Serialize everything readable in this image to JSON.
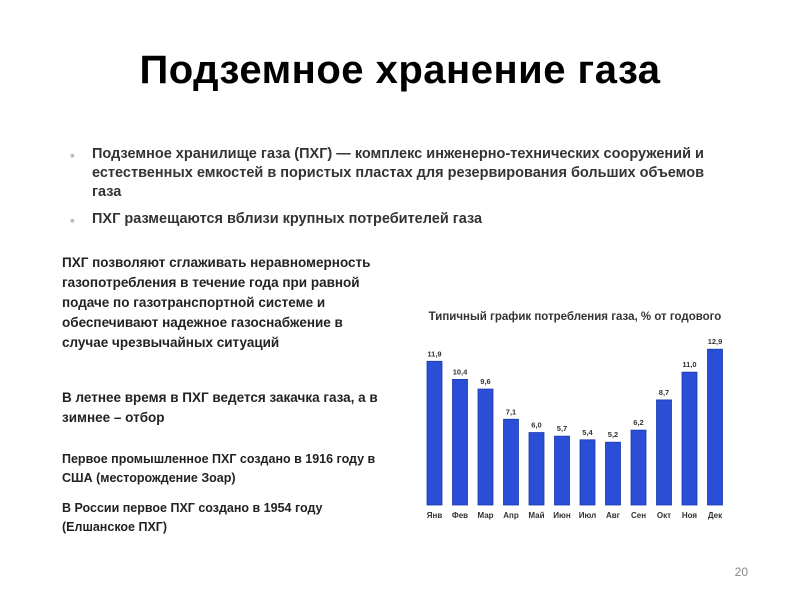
{
  "slide": {
    "title": "Подземное хранение газа",
    "page_number": "20",
    "bullets": [
      "Подземное хранилище газа (ПХГ) — комплекс инженерно-технических сооружений и естественных емкостей в пористых пластах для резервирования больших объемов газа",
      "ПХГ размещаются вблизи крупных потребителей газа"
    ],
    "paragraphs": [
      "ПХГ позволяют сглаживать неравномерность газопотребления в течение года при равной подаче по газотранспортной системе и обеспечивают надежное газоснабжение в случае чрезвычайных ситуаций",
      "В летнее время в ПХГ ведется закачка газа, а в зимнее – отбор",
      "Первое промышленное ПХГ создано в 1916 году в США (месторождение Зоар)",
      "В России первое ПХГ создано в 1954 году (Елшанское ПХГ)"
    ]
  },
  "colors": {
    "bar": "#2a4fd6",
    "bar_edge": "#1a3ab0"
  },
  "chart_data": {
    "type": "bar",
    "title": "Типичный график потребления газа, % от годового",
    "categories": [
      "Янв",
      "Фев",
      "Мар",
      "Апр",
      "Май",
      "Июн",
      "Июл",
      "Авг",
      "Сен",
      "Окт",
      "Ноя",
      "Дек"
    ],
    "values": [
      11.9,
      10.4,
      9.6,
      7.1,
      6.0,
      5.7,
      5.4,
      5.2,
      6.2,
      8.7,
      11.0,
      12.9
    ],
    "value_labels": [
      "11,9",
      "10,4",
      "9,6",
      "7,1",
      "6,0",
      "5,7",
      "5,4",
      "5,2",
      "6,2",
      "8,7",
      "11,0",
      "12,9"
    ],
    "xlabel": "",
    "ylabel": "",
    "ylim": [
      0,
      13
    ]
  }
}
